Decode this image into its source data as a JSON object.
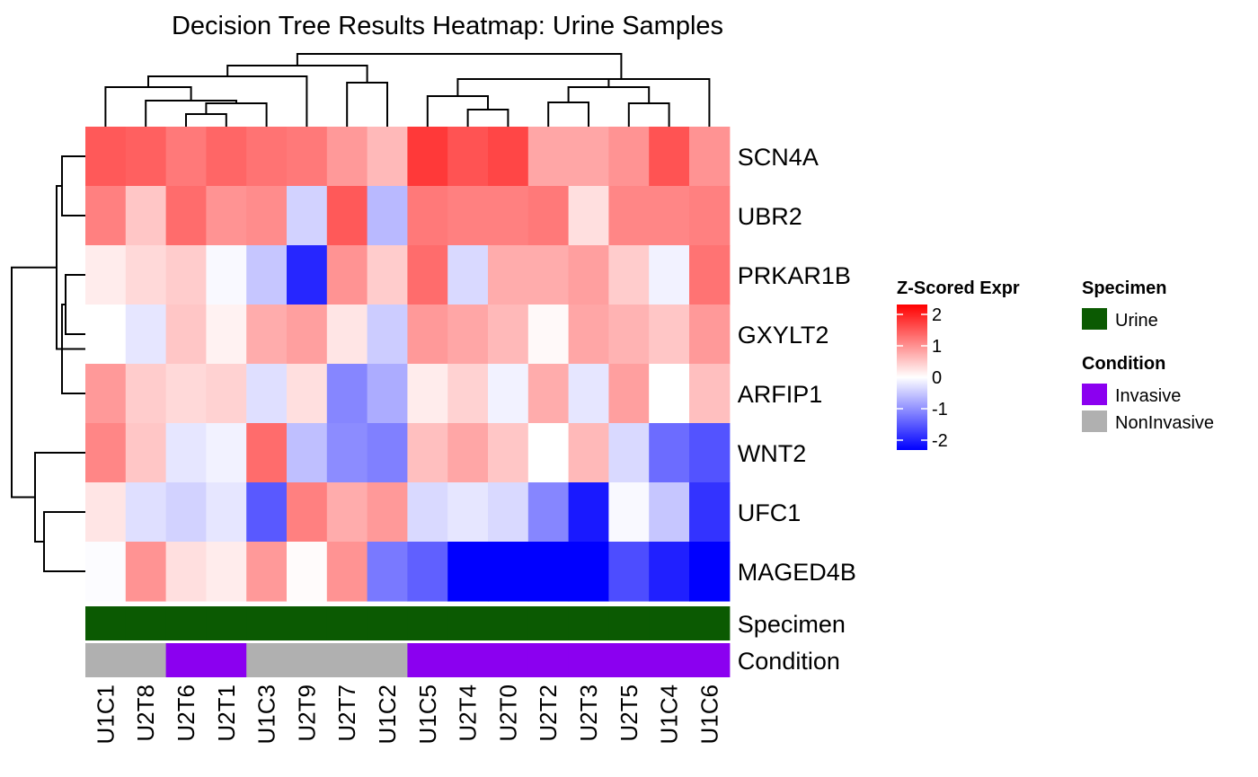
{
  "chart_data": {
    "type": "heatmap",
    "title": "Decision Tree Results Heatmap: Urine Samples",
    "columns": [
      "U1C1",
      "U2T8",
      "U2T6",
      "U2T1",
      "U1C3",
      "U2T9",
      "U2T7",
      "U1C2",
      "U1C5",
      "U2T4",
      "U2T0",
      "U2T2",
      "U2T3",
      "U2T5",
      "U1C4",
      "U1C6"
    ],
    "rows": [
      "SCN4A",
      "UBR2",
      "PRKAR1B",
      "GXYLT2",
      "ARFIP1",
      "WNT2",
      "UFC1",
      "MAGED4B"
    ],
    "values": [
      [
        1.3,
        1.25,
        1.05,
        1.2,
        1.1,
        1.05,
        0.8,
        0.55,
        1.55,
        1.35,
        1.45,
        0.7,
        0.7,
        0.85,
        1.35,
        0.85
      ],
      [
        1.0,
        0.45,
        1.15,
        0.85,
        0.9,
        -0.35,
        1.3,
        -0.55,
        1.05,
        1.0,
        1.0,
        1.05,
        0.25,
        0.95,
        0.95,
        1.0
      ],
      [
        0.15,
        0.3,
        0.4,
        -0.05,
        -0.45,
        -1.7,
        0.85,
        0.4,
        1.15,
        -0.3,
        0.65,
        0.65,
        0.75,
        0.4,
        -0.1,
        1.1
      ],
      [
        0.0,
        -0.2,
        0.45,
        0.1,
        0.65,
        0.75,
        0.2,
        -0.4,
        0.8,
        0.7,
        0.55,
        0.05,
        0.7,
        0.6,
        0.45,
        0.8
      ],
      [
        0.8,
        0.4,
        0.3,
        0.35,
        -0.25,
        0.25,
        -0.95,
        -0.65,
        0.15,
        0.35,
        -0.1,
        0.65,
        -0.2,
        0.75,
        0.0,
        0.5
      ],
      [
        0.95,
        0.45,
        -0.2,
        -0.1,
        1.15,
        -0.5,
        -0.9,
        -1.0,
        0.5,
        0.7,
        0.45,
        0.0,
        0.55,
        -0.3,
        -1.15,
        -1.35
      ],
      [
        0.2,
        -0.25,
        -0.35,
        -0.2,
        -1.3,
        1.0,
        0.65,
        0.8,
        -0.3,
        -0.2,
        -0.3,
        -0.95,
        -1.8,
        -0.05,
        -0.45,
        -1.6
      ],
      [
        -0.02,
        0.85,
        0.25,
        0.15,
        0.8,
        0.03,
        0.85,
        -1.05,
        -1.25,
        -2.0,
        -2.0,
        -2.0,
        -2.0,
        -1.4,
        -1.75,
        -2.0
      ]
    ],
    "annotations": [
      {
        "name": "Specimen",
        "values": [
          "Urine",
          "Urine",
          "Urine",
          "Urine",
          "Urine",
          "Urine",
          "Urine",
          "Urine",
          "Urine",
          "Urine",
          "Urine",
          "Urine",
          "Urine",
          "Urine",
          "Urine",
          "Urine"
        ]
      },
      {
        "name": "Condition",
        "values": [
          "NonInvasive",
          "NonInvasive",
          "Invasive",
          "Invasive",
          "NonInvasive",
          "NonInvasive",
          "NonInvasive",
          "NonInvasive",
          "Invasive",
          "Invasive",
          "Invasive",
          "Invasive",
          "Invasive",
          "Invasive",
          "Invasive",
          "Invasive"
        ]
      }
    ],
    "color_scale": {
      "title": "Z-Scored Expr",
      "range": [
        -2,
        2
      ],
      "ticks": [
        "2",
        "1",
        "0",
        "-1",
        "-2"
      ],
      "low_color": "#0000ff",
      "mid_color": "#ffffff",
      "high_color": "#ff0000"
    },
    "legends": [
      {
        "title": "Specimen",
        "items": [
          {
            "label": "Urine",
            "color": "#0b5a02"
          }
        ]
      },
      {
        "title": "Condition",
        "items": [
          {
            "label": "Invasive",
            "color": "#8b00f0"
          },
          {
            "label": "NonInvasive",
            "color": "#b0b0b0"
          }
        ]
      }
    ],
    "legend_position": "right",
    "grid": false
  }
}
